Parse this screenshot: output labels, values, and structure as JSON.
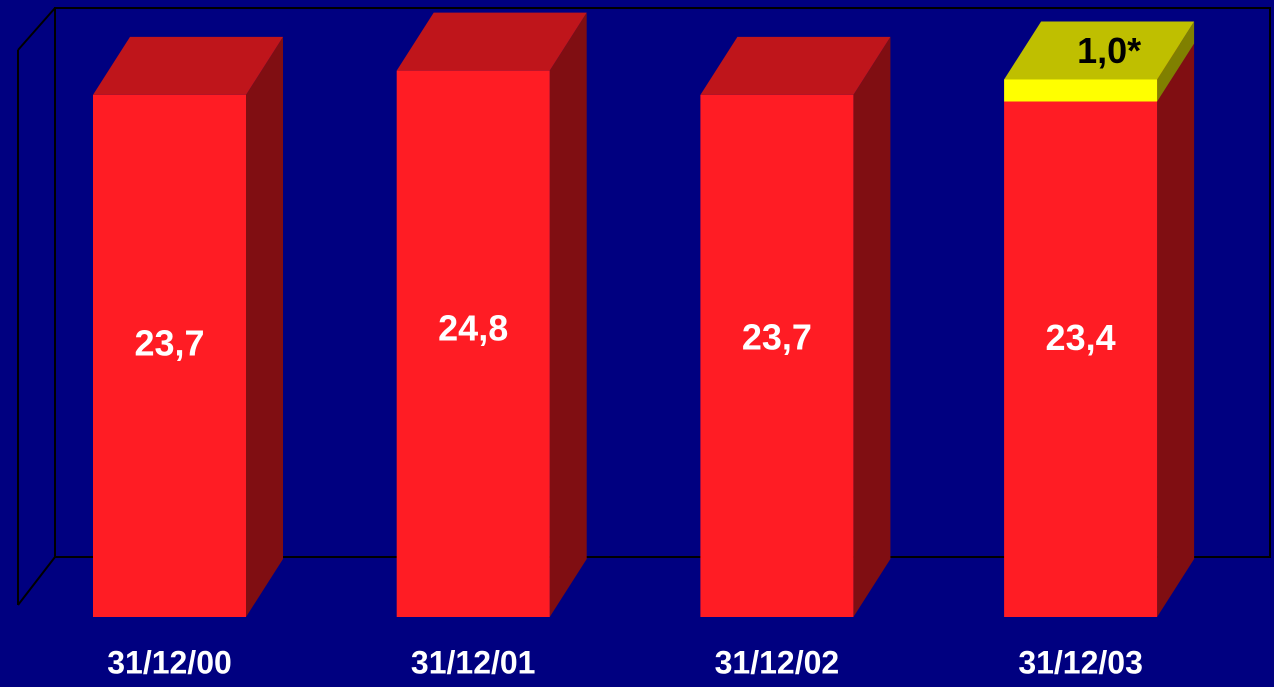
{
  "chart_data": {
    "type": "bar",
    "stacked": true,
    "categories": [
      "31/12/00",
      "31/12/01",
      "31/12/02",
      "31/12/03"
    ],
    "series": [
      {
        "color": "#ff1c24",
        "label_color": "#ffffff",
        "values": [
          23.7,
          24.8,
          23.7,
          23.4
        ],
        "value_labels": [
          "23,7",
          "24,8",
          "23,7",
          "23,4"
        ]
      },
      {
        "color": "#ffff00",
        "label_color": "#000000",
        "values": [
          null,
          null,
          null,
          1.0
        ],
        "value_labels": [
          null,
          null,
          null,
          "1,0*"
        ]
      }
    ]
  }
}
